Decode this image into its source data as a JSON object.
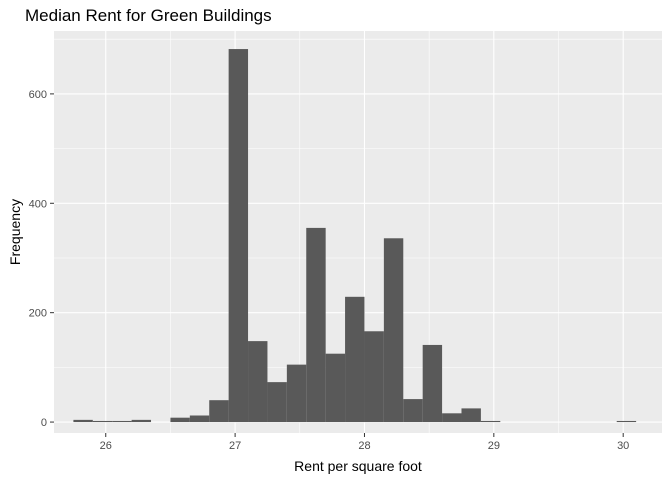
{
  "chart_data": {
    "type": "bar",
    "title": "Median Rent for Green Buildings",
    "xlabel": "Rent per square foot",
    "ylabel": "Frequency",
    "xlim": [
      25.6,
      30.3
    ],
    "ylim": [
      -20,
      715
    ],
    "x_ticks": [
      26,
      27,
      28,
      29,
      30
    ],
    "y_ticks": [
      0,
      200,
      400,
      600
    ],
    "grid": true,
    "bin_width": 0.15,
    "bins": [
      {
        "x0": 25.75,
        "x1": 25.9,
        "count": 4
      },
      {
        "x0": 25.9,
        "x1": 26.05,
        "count": 2
      },
      {
        "x0": 26.05,
        "x1": 26.2,
        "count": 2
      },
      {
        "x0": 26.2,
        "x1": 26.35,
        "count": 4
      },
      {
        "x0": 26.35,
        "x1": 26.5,
        "count": 0
      },
      {
        "x0": 26.5,
        "x1": 26.65,
        "count": 8
      },
      {
        "x0": 26.65,
        "x1": 26.8,
        "count": 12
      },
      {
        "x0": 26.8,
        "x1": 26.95,
        "count": 40
      },
      {
        "x0": 26.95,
        "x1": 27.1,
        "count": 682
      },
      {
        "x0": 27.1,
        "x1": 27.25,
        "count": 148
      },
      {
        "x0": 27.25,
        "x1": 27.4,
        "count": 73
      },
      {
        "x0": 27.4,
        "x1": 27.55,
        "count": 105
      },
      {
        "x0": 27.55,
        "x1": 27.7,
        "count": 355
      },
      {
        "x0": 27.7,
        "x1": 27.85,
        "count": 125
      },
      {
        "x0": 27.85,
        "x1": 28.0,
        "count": 229
      },
      {
        "x0": 28.0,
        "x1": 28.15,
        "count": 166
      },
      {
        "x0": 28.15,
        "x1": 28.3,
        "count": 336
      },
      {
        "x0": 28.3,
        "x1": 28.45,
        "count": 42
      },
      {
        "x0": 28.45,
        "x1": 28.6,
        "count": 141
      },
      {
        "x0": 28.6,
        "x1": 28.75,
        "count": 16
      },
      {
        "x0": 28.75,
        "x1": 28.9,
        "count": 25
      },
      {
        "x0": 28.9,
        "x1": 29.05,
        "count": 2
      },
      {
        "x0": 29.95,
        "x1": 30.1,
        "count": 2
      }
    ],
    "colors": {
      "panel": "#ebebeb",
      "grid_major": "#ffffff",
      "bar_fill": "#595959",
      "tick_text": "#4d4d4d",
      "axis_title": "#000000"
    }
  }
}
